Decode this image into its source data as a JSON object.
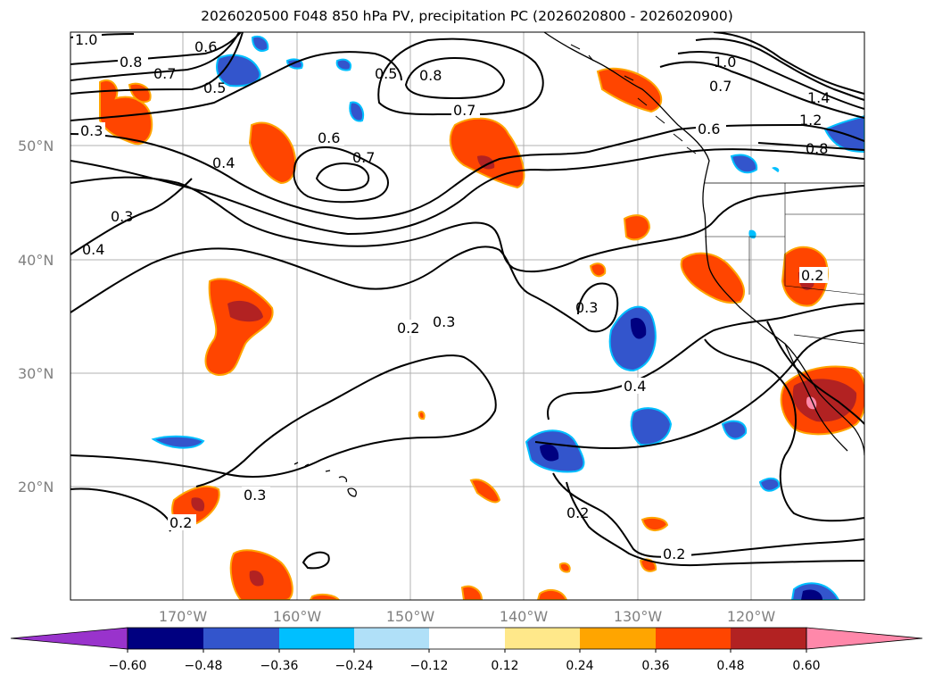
{
  "title": "2026020500 F048 850 hPa PV, precipitation PC (2026020800 - 2026020900)",
  "map": {
    "lat_labels": [
      "50°N",
      "40°N",
      "30°N",
      "20°N"
    ],
    "lon_labels": [
      "170°W",
      "160°W",
      "150°W",
      "140°W",
      "130°W",
      "120°W"
    ],
    "grid": true,
    "contour_labels": [
      "1.0",
      "0.8",
      "0.7",
      "0.6",
      "0.5",
      "0.5",
      "0.3",
      "0.4",
      "0.3",
      "0.4",
      "0.6",
      "0.7",
      "0.8",
      "0.7",
      "0.6",
      "1.0",
      "0.7",
      "1.4",
      "1.2",
      "0.8",
      "0.2",
      "0.3",
      "0.3",
      "0.2",
      "0.4",
      "0.3",
      "0.2",
      "0.2",
      "0.2",
      "0.2"
    ]
  },
  "colorbar": {
    "ticks": [
      "−0.60",
      "−0.48",
      "−0.36",
      "−0.24",
      "−0.12",
      "0.12",
      "0.24",
      "0.36",
      "0.48",
      "0.60"
    ],
    "colors": [
      "#9933cc",
      "#000080",
      "#3355cc",
      "#00bfff",
      "#b0e0f8",
      "#ffffff",
      "#ffe88a",
      "#ffa500",
      "#ff4500",
      "#b22222",
      "#ff88aa"
    ]
  }
}
